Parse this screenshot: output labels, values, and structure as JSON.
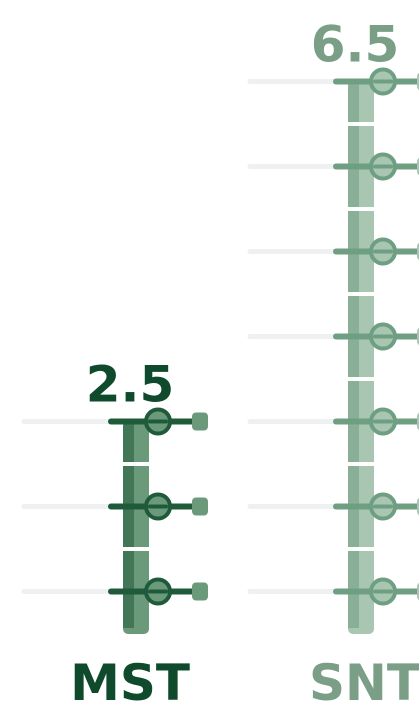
{
  "chart_data": {
    "type": "bar",
    "categories": [
      "MST",
      "SNT"
    ],
    "values": [
      2.5,
      6.5
    ],
    "value_labels": [
      "2.5",
      "6.5"
    ],
    "title": "",
    "xlabel": "",
    "ylabel": "",
    "ylim": [
      0,
      6.5
    ],
    "grid": true,
    "legend": "none"
  },
  "colors": {
    "MST_bar": "#6b9a7a",
    "MST_bar_dark": "#1f5a3a",
    "MST_label": "#0f4a2c",
    "SNT_bar": "#a9c6b2",
    "SNT_bar_dark": "#6f9f82",
    "SNT_label": "#7a9f86",
    "gridline": "#eef0f2"
  }
}
